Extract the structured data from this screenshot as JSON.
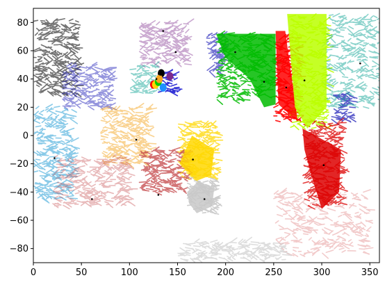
{
  "chart_data": {
    "type": "scatter",
    "title": "",
    "xlabel": "",
    "ylabel": "",
    "xlim": [
      0,
      360
    ],
    "ylim": [
      -90,
      90
    ],
    "xticks": [
      0,
      50,
      100,
      150,
      200,
      250,
      300,
      350
    ],
    "yticks": [
      -80,
      -60,
      -40,
      -20,
      0,
      20,
      40,
      60,
      80
    ],
    "xtick_labels": [
      "0",
      "50",
      "100",
      "150",
      "200",
      "250",
      "300",
      "350"
    ],
    "ytick_labels": [
      "−80",
      "−60",
      "−40",
      "−20",
      "0",
      "20",
      "40",
      "60",
      "80"
    ],
    "grid": false,
    "legend": "none",
    "regions": [
      {
        "color": "#000000",
        "x": [
          0,
          45
        ],
        "y": [
          30,
          82
        ],
        "opacity": 0.55
      },
      {
        "color": "#1515b5",
        "x": [
          30,
          80
        ],
        "y": [
          20,
          50
        ],
        "opacity": 0.45
      },
      {
        "color": "#1515b5",
        "x": [
          180,
          200
        ],
        "y": [
          45,
          72
        ],
        "opacity": 0.6
      },
      {
        "color": "#1515b5",
        "x": [
          310,
          330
        ],
        "y": [
          10,
          30
        ],
        "opacity": 0.7
      },
      {
        "color": "#7d2a8c",
        "x": [
          110,
          160
        ],
        "y": [
          50,
          80
        ],
        "opacity": 0.4
      },
      {
        "color": "#00bb00",
        "x": [
          190,
          250
        ],
        "y": [
          25,
          72
        ],
        "opacity": 0.85
      },
      {
        "color": "#ff0000",
        "x": [
          250,
          275
        ],
        "y": [
          10,
          70
        ],
        "opacity": 0.9
      },
      {
        "color": "#bbff00",
        "x": [
          265,
          305
        ],
        "y": [
          5,
          85
        ],
        "opacity": 0.9
      },
      {
        "color": "#1aa89a",
        "x": [
          300,
          360
        ],
        "y": [
          20,
          85
        ],
        "opacity": 0.5
      },
      {
        "color": "#dd0000",
        "x": [
          280,
          320
        ],
        "y": [
          -50,
          10
        ],
        "opacity": 0.75
      },
      {
        "color": "#cc3333",
        "x": [
          250,
          350
        ],
        "y": [
          -85,
          -40
        ],
        "opacity": 0.25
      },
      {
        "color": "#f5a623",
        "x": [
          70,
          120
        ],
        "y": [
          -20,
          20
        ],
        "opacity": 0.5
      },
      {
        "color": "#ffd700",
        "x": [
          150,
          190
        ],
        "y": [
          -30,
          10
        ],
        "opacity": 0.75
      },
      {
        "color": "#c0393b",
        "x": [
          110,
          160
        ],
        "y": [
          -40,
          -10
        ],
        "opacity": 0.7
      },
      {
        "color": "#c8c8c8",
        "x": [
          160,
          190
        ],
        "y": [
          -55,
          -30
        ],
        "opacity": 0.9
      },
      {
        "color": "#c8c8c8",
        "x": [
          150,
          260
        ],
        "y": [
          -88,
          -75
        ],
        "opacity": 0.6
      },
      {
        "color": "#2a9fd6",
        "x": [
          0,
          40
        ],
        "y": [
          -45,
          20
        ],
        "opacity": 0.55
      },
      {
        "color": "#c0393b",
        "x": [
          20,
          100
        ],
        "y": [
          -50,
          -15
        ],
        "opacity": 0.35
      },
      {
        "color": "#0000cc",
        "x": [
          130,
          150
        ],
        "y": [
          30,
          45
        ],
        "opacity": 0.8
      },
      {
        "color": "#1aa89a",
        "x": [
          100,
          125
        ],
        "y": [
          30,
          50
        ],
        "opacity": 0.5
      }
    ],
    "markers": [
      {
        "x": 135,
        "y": 74
      },
      {
        "x": 148,
        "y": 59
      },
      {
        "x": 210,
        "y": 59
      },
      {
        "x": 240,
        "y": 38
      },
      {
        "x": 263,
        "y": 34
      },
      {
        "x": 282,
        "y": 39
      },
      {
        "x": 340,
        "y": 51
      },
      {
        "x": 107,
        "y": -3
      },
      {
        "x": 166,
        "y": -17
      },
      {
        "x": 22,
        "y": -16
      },
      {
        "x": 61,
        "y": -45
      },
      {
        "x": 130,
        "y": -42
      },
      {
        "x": 178,
        "y": -45
      },
      {
        "x": 302,
        "y": -21
      },
      {
        "x": 128,
        "y": 40
      },
      {
        "x": 132,
        "y": 43
      }
    ],
    "clusters": [
      {
        "color": "#ff0000",
        "x": 125,
        "y": 36
      },
      {
        "color": "#ffd700",
        "x": 127,
        "y": 36
      },
      {
        "color": "#00cc00",
        "x": 130,
        "y": 38
      },
      {
        "color": "#1e90ff",
        "x": 135,
        "y": 34
      },
      {
        "color": "#7d2a8c",
        "x": 142,
        "y": 42
      },
      {
        "color": "#000000",
        "x": 133,
        "y": 44
      },
      {
        "color": "#f5a623",
        "x": 131,
        "y": 40
      }
    ]
  }
}
